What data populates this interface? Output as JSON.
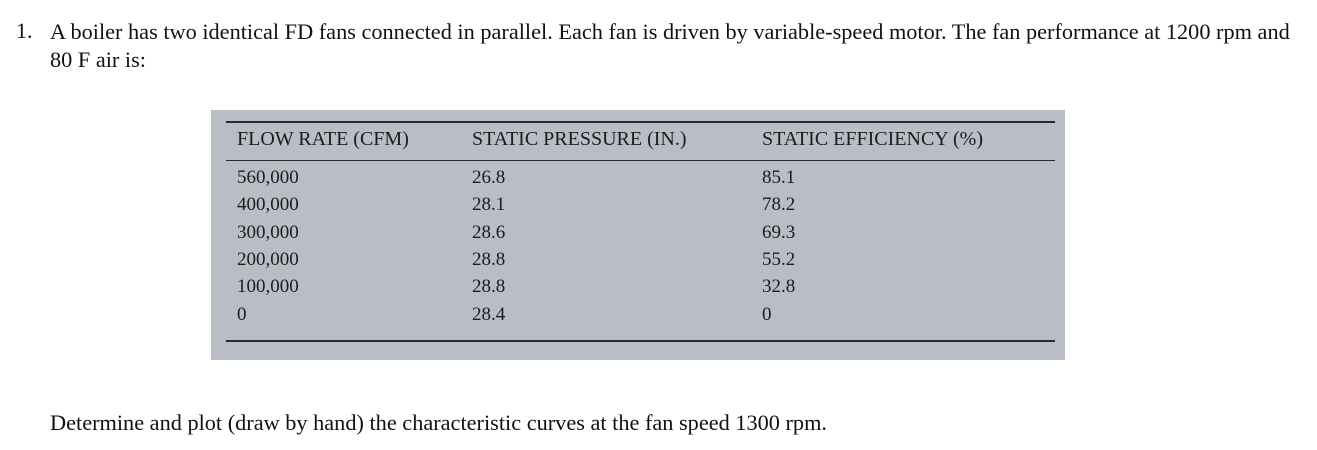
{
  "question": {
    "number": "1.",
    "text": "A boiler has two identical FD fans connected in parallel. Each fan is driven by variable-speed motor. The fan performance at 1200 rpm and 80 F air is:"
  },
  "table": {
    "headers": [
      "FLOW RATE (CFM)",
      "STATIC PRESSURE (IN.)",
      "STATIC EFFICIENCY (%)"
    ],
    "rows": [
      [
        "560,000",
        "26.8",
        "85.1"
      ],
      [
        "400,000",
        "28.1",
        "78.2"
      ],
      [
        "300,000",
        "28.6",
        "69.3"
      ],
      [
        "200,000",
        "28.8",
        "55.2"
      ],
      [
        "100,000",
        "28.8",
        "32.8"
      ],
      [
        "0",
        "28.4",
        "0"
      ]
    ]
  },
  "instruction": "Determine and plot (draw by hand) the characteristic curves at the fan speed 1300 rpm."
}
